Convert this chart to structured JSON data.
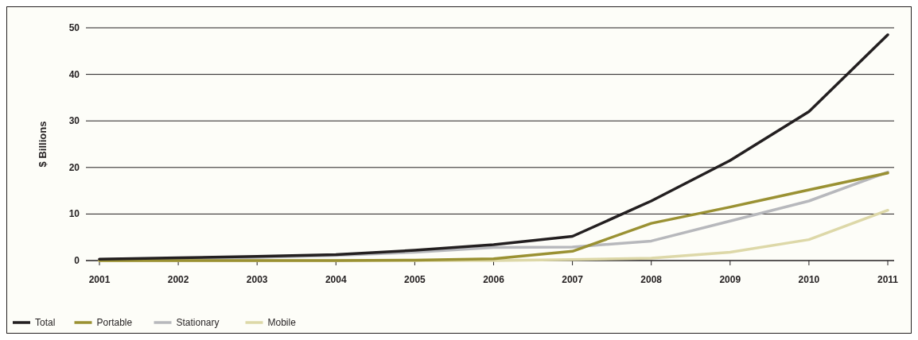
{
  "chart_data": {
    "type": "line",
    "ylabel": "$ Billions",
    "categories": [
      "2001",
      "2002",
      "2003",
      "2004",
      "2005",
      "2006",
      "2007",
      "2008",
      "2009",
      "2010",
      "2011"
    ],
    "series": [
      {
        "name": "Total",
        "color": "#231f20",
        "values": [
          0.3,
          0.6,
          0.9,
          1.3,
          2.2,
          3.4,
          5.2,
          12.8,
          21.5,
          32,
          48.5
        ]
      },
      {
        "name": "Portable",
        "color": "#9a9133",
        "values": [
          0,
          0,
          0,
          0,
          0.1,
          0.4,
          2,
          8,
          11.5,
          15.2,
          18.8
        ]
      },
      {
        "name": "Stationary",
        "color": "#b7b8bc",
        "values": [
          0.2,
          0.4,
          0.7,
          1.1,
          1.8,
          2.8,
          2.9,
          4.2,
          8.5,
          12.8,
          19
        ]
      },
      {
        "name": "Mobile",
        "color": "#ddd8a8",
        "values": [
          0,
          0,
          0,
          0,
          0,
          0,
          0.2,
          0.5,
          1.8,
          4.5,
          10.8
        ]
      }
    ],
    "ylim": [
      0,
      50
    ],
    "yticks": [
      0,
      10,
      20,
      30,
      40,
      50
    ],
    "grid": "y",
    "legend": "bottom left",
    "marker": "none",
    "line_style": "solid"
  }
}
